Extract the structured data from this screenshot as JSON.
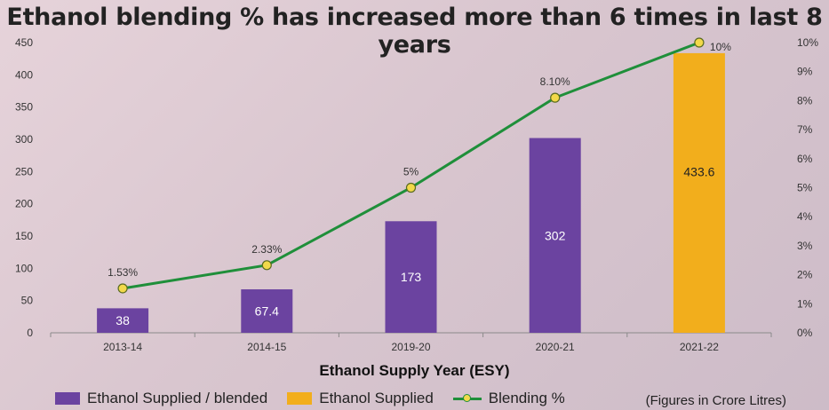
{
  "title": "Ethanol blending % has increased more than 6 times in last 8 years",
  "note": "(Figures in Crore Litres)",
  "colors": {
    "blended": "#6b43a0",
    "supplied": "#f2ae1c",
    "line": "#1f8f3a",
    "marker": "#f2d94a"
  },
  "legend": [
    {
      "label": "Ethanol Supplied / blended",
      "color": "#6b43a0",
      "kind": "bar"
    },
    {
      "label": "Ethanol Supplied",
      "color": "#f2ae1c",
      "kind": "bar"
    },
    {
      "label": "Blending %",
      "color": "#1f8f3a",
      "kind": "line"
    }
  ],
  "chart_data": {
    "type": "bar",
    "xlabel": "Ethanol Supply Year (ESY)",
    "categories": [
      "2013-14",
      "2014-15",
      "2019-20",
      "2020-21",
      "2021-22"
    ],
    "series": [
      {
        "name": "Ethanol Supplied / blended",
        "values": [
          38,
          67.4,
          173,
          302,
          null
        ],
        "labels": [
          "38",
          "67.4",
          "173",
          "302",
          ""
        ],
        "axis": "left"
      },
      {
        "name": "Ethanol Supplied",
        "values": [
          null,
          null,
          null,
          null,
          433.6
        ],
        "labels": [
          "",
          "",
          "",
          "",
          "433.6"
        ],
        "axis": "left"
      },
      {
        "name": "Blending %",
        "type": "line",
        "values": [
          1.53,
          2.33,
          5,
          8.1,
          10
        ],
        "labels": [
          "1.53%",
          "2.33%",
          "5%",
          "8.10%",
          "10%"
        ],
        "axis": "right"
      }
    ],
    "ylim_left": [
      0,
      450
    ],
    "yticks_left": [
      0,
      50,
      100,
      150,
      200,
      250,
      300,
      350,
      400,
      450
    ],
    "ylim_right": [
      0,
      10
    ],
    "yticks_right_labels": [
      "0%",
      "1%",
      "2%",
      "3%",
      "4%",
      "5%",
      "6%",
      "7%",
      "8%",
      "9%",
      "10%"
    ],
    "grid": false,
    "legend_position": "bottom"
  }
}
